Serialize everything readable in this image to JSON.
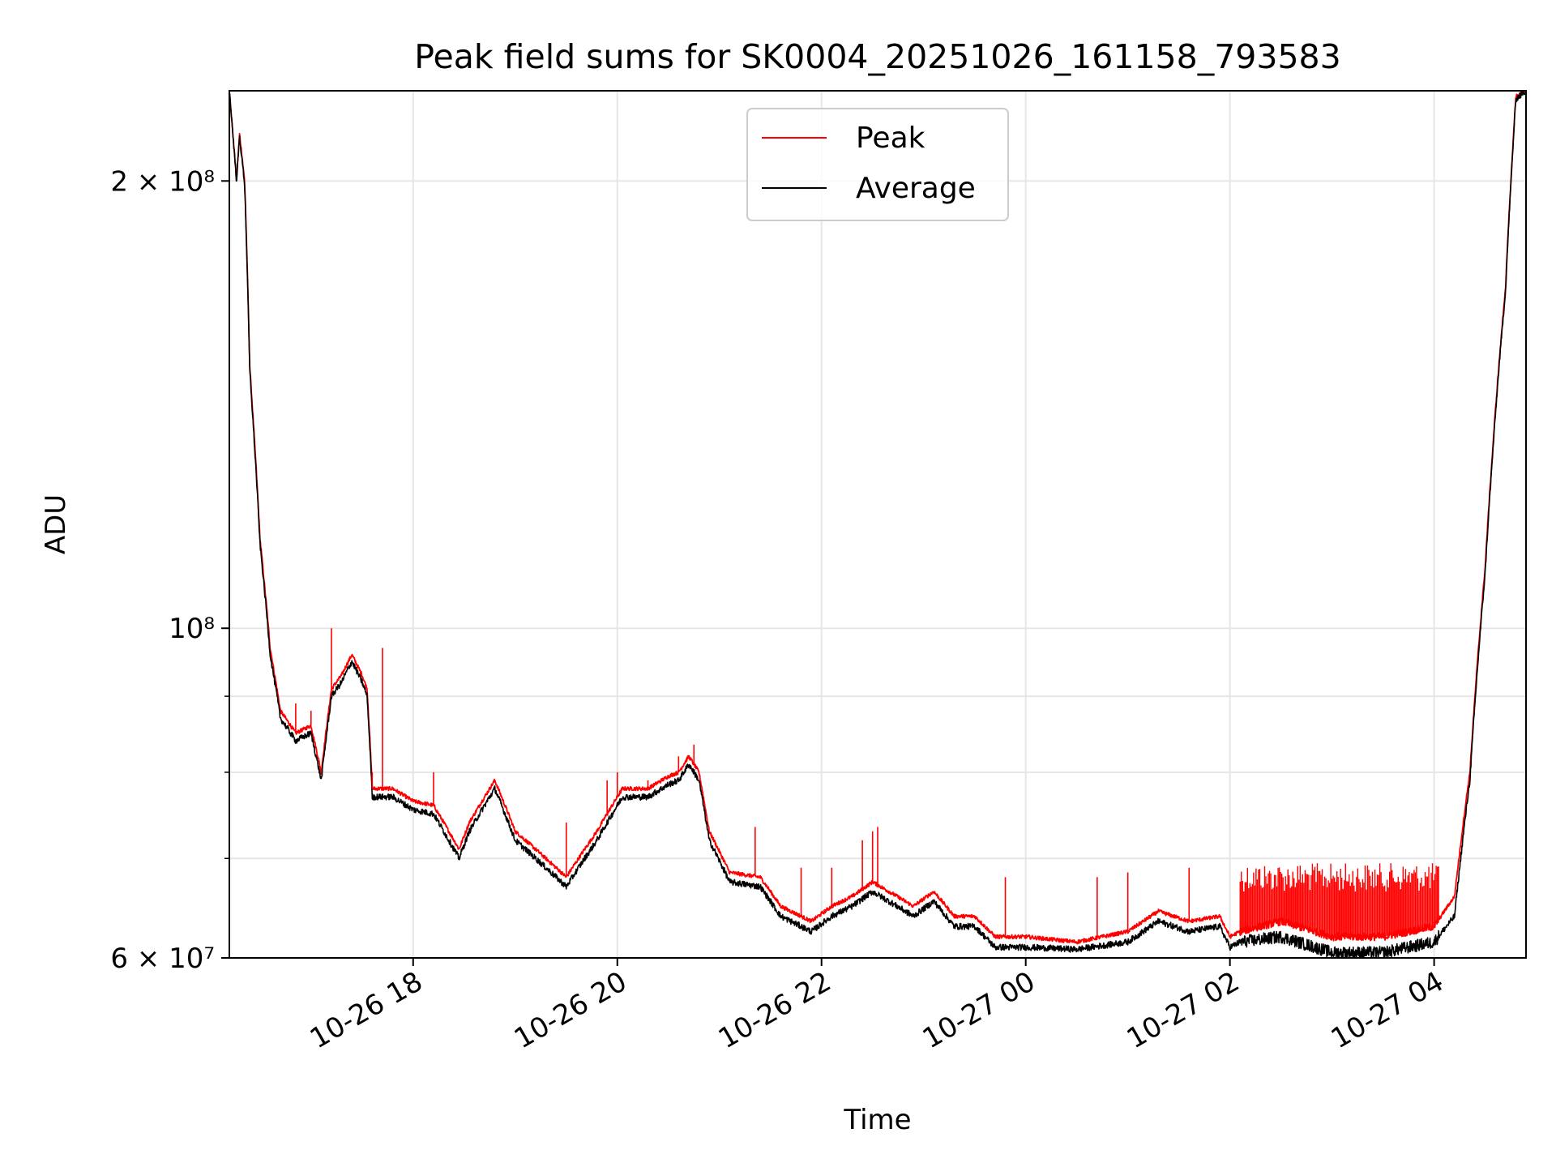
{
  "chart_data": {
    "type": "line",
    "title": "Peak field sums for SK0004_20251026_161158_793583",
    "xlabel": "Time",
    "ylabel": "ADU",
    "yscale": "log",
    "ylim": [
      60000000,
      230000000
    ],
    "xlim_hours": [
      16.2,
      28.9
    ],
    "grid": true,
    "legend_position": "upper center",
    "x_ticks": [
      {
        "label": "10-26 18",
        "hour": 18
      },
      {
        "label": "10-26 20",
        "hour": 20
      },
      {
        "label": "10-26 22",
        "hour": 22
      },
      {
        "label": "10-27 00",
        "hour": 24
      },
      {
        "label": "10-27 02",
        "hour": 26
      },
      {
        "label": "10-27 04",
        "hour": 28
      }
    ],
    "y_ticks": [
      {
        "label": "2 × 10⁸",
        "value": 200000000
      },
      {
        "label": "10⁸",
        "value": 100000000
      },
      {
        "label": "6 × 10⁷",
        "value": 60000000
      }
    ],
    "y_minor_grid": [
      70000000,
      80000000,
      90000000
    ],
    "series": [
      {
        "name": "Peak",
        "color": "#ff0000",
        "x_hours": [
          16.2,
          16.27,
          16.3,
          16.35,
          16.4,
          16.5,
          16.6,
          16.7,
          16.85,
          17.0,
          17.1,
          17.2,
          17.3,
          17.4,
          17.5,
          17.55,
          17.6,
          17.8,
          18.0,
          18.2,
          18.45,
          18.55,
          18.8,
          19.0,
          19.3,
          19.5,
          19.8,
          20.05,
          20.3,
          20.5,
          20.6,
          20.7,
          20.8,
          20.9,
          21.1,
          21.4,
          21.6,
          21.9,
          22.1,
          22.3,
          22.5,
          22.9,
          23.1,
          23.3,
          23.5,
          23.7,
          24.0,
          24.5,
          25.0,
          25.3,
          25.6,
          25.9,
          26.0,
          26.1,
          26.5,
          27.0,
          27.5,
          28.0,
          28.2,
          28.35,
          28.5,
          28.7,
          28.8,
          28.9
        ],
        "values": [
          230000000,
          200000000,
          215000000,
          200000000,
          150000000,
          115000000,
          97000000,
          88000000,
          85000000,
          86000000,
          80000000,
          91000000,
          93000000,
          96000000,
          93000000,
          91000000,
          78000000,
          78000000,
          76500000,
          76000000,
          71000000,
          74000000,
          79000000,
          73000000,
          70000000,
          68000000,
          73000000,
          78000000,
          78000000,
          79500000,
          80000000,
          82000000,
          80000000,
          73000000,
          68500000,
          68000000,
          65000000,
          63500000,
          65000000,
          66000000,
          67500000,
          65000000,
          66500000,
          64000000,
          64000000,
          62000000,
          62000000,
          61500000,
          62500000,
          64500000,
          63500000,
          64000000,
          62000000,
          62500000,
          63500000,
          62000000,
          62000000,
          63000000,
          66000000,
          80000000,
          110000000,
          170000000,
          228000000,
          230000000
        ]
      },
      {
        "name": "Average",
        "color": "#000000",
        "x_hours": [
          16.2,
          16.27,
          16.3,
          16.35,
          16.4,
          16.5,
          16.6,
          16.7,
          16.85,
          17.0,
          17.1,
          17.2,
          17.3,
          17.4,
          17.5,
          17.55,
          17.6,
          17.8,
          18.0,
          18.2,
          18.45,
          18.55,
          18.8,
          19.0,
          19.3,
          19.5,
          19.8,
          20.05,
          20.3,
          20.5,
          20.6,
          20.7,
          20.8,
          20.9,
          21.1,
          21.4,
          21.6,
          21.9,
          22.1,
          22.3,
          22.5,
          22.9,
          23.1,
          23.3,
          23.5,
          23.7,
          24.0,
          24.5,
          25.0,
          25.3,
          25.6,
          25.9,
          26.0,
          26.1,
          26.5,
          27.0,
          27.5,
          28.0,
          28.2,
          28.35,
          28.5,
          28.7,
          28.8,
          28.9
        ],
        "values": [
          230000000,
          200000000,
          214000000,
          199000000,
          149000000,
          114000000,
          96000000,
          87000000,
          84000000,
          85000000,
          79000000,
          90000000,
          92000000,
          95000000,
          92000000,
          90000000,
          77000000,
          77000000,
          75500000,
          75000000,
          70000000,
          73000000,
          78000000,
          72000000,
          69000000,
          67000000,
          72000000,
          77000000,
          77000000,
          78500000,
          79000000,
          81000000,
          79000000,
          72000000,
          67500000,
          67000000,
          64000000,
          62500000,
          64000000,
          65000000,
          66500000,
          64000000,
          65500000,
          63000000,
          63000000,
          61000000,
          61000000,
          60800000,
          61500000,
          63500000,
          62500000,
          63000000,
          61000000,
          61500000,
          62000000,
          60500000,
          60500000,
          61500000,
          64000000,
          79000000,
          109000000,
          169000000,
          227000000,
          230000000
        ]
      }
    ],
    "spikes": {
      "hours": [
        16.85,
        17.0,
        17.2,
        17.6,
        17.7,
        18.2,
        19.5,
        19.9,
        20.0,
        20.3,
        20.6,
        20.75,
        21.35,
        21.8,
        22.1,
        22.4,
        22.5,
        22.55,
        23.8,
        24.7,
        25.0,
        25.6
      ],
      "values": [
        89000000,
        88000000,
        100000000,
        80000000,
        97000000,
        80000000,
        74000000,
        79000000,
        80000000,
        79000000,
        82000000,
        83500000,
        73500000,
        69000000,
        69000000,
        72000000,
        73000000,
        73500000,
        68000000,
        68000000,
        68500000,
        69000000
      ]
    },
    "noisy_region": {
      "start_hour": 26.1,
      "end_hour": 28.05,
      "peak_max": 69500000
    }
  }
}
